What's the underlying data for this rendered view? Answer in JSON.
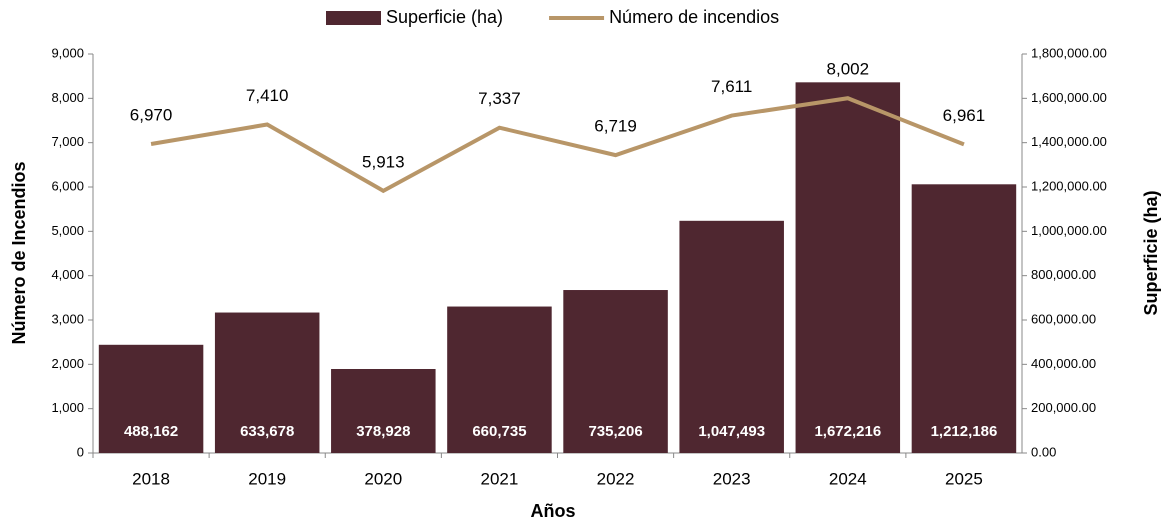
{
  "chart_data": {
    "type": "bar",
    "x_label": "Años",
    "y_label": "Número de Incendios",
    "y2_label": "Superficie (ha)",
    "categories": [
      "2018",
      "2019",
      "2020",
      "2021",
      "2022",
      "2023",
      "2024",
      "2025"
    ],
    "series": [
      {
        "name": "Superficie (ha)",
        "type": "bar",
        "axis": "y2",
        "color": "#4f2730",
        "values": [
          488162,
          633678,
          378928,
          660735,
          735206,
          1047493,
          1672216,
          1212186
        ],
        "value_labels": [
          "488,162",
          "633,678",
          "378,928",
          "660,735",
          "735,206",
          "1,047,493",
          "1,672,216",
          "1,212,186"
        ]
      },
      {
        "name": "Número de incendios",
        "type": "line",
        "axis": "y",
        "color": "#b89668",
        "values": [
          6970,
          7410,
          5913,
          7337,
          6719,
          7611,
          8002,
          6961
        ],
        "value_labels": [
          "6,970",
          "7,410",
          "5,913",
          "7,337",
          "6,719",
          "7,611",
          "8,002",
          "6,961"
        ]
      }
    ],
    "ylim": [
      0,
      9000
    ],
    "yticks": [
      0,
      {
        "value": 1000,
        "label": "1,000"
      },
      {
        "value": 2000,
        "label": "2,000"
      },
      {
        "value": 3000,
        "label": "3,000"
      },
      {
        "value": 4000,
        "label": "4,000"
      },
      {
        "value": 5000,
        "label": "5,000"
      },
      {
        "value": 6000,
        "label": "6,000"
      },
      {
        "value": 7000,
        "label": "7,000"
      },
      {
        "value": 8000,
        "label": "8,000"
      },
      {
        "value": 9000,
        "label": "9,000"
      }
    ],
    "y2lim": [
      0,
      1800000
    ],
    "y2ticks": [
      {
        "value": 0,
        "label": "0.00"
      },
      {
        "value": 200000,
        "label": "200,000.00"
      },
      {
        "value": 400000,
        "label": "400,000.00"
      },
      {
        "value": 600000,
        "label": "600,000.00"
      },
      {
        "value": 800000,
        "label": "800,000.00"
      },
      {
        "value": 1000000,
        "label": "1,000,000.00"
      },
      {
        "value": 1200000,
        "label": "1,200,000.00"
      },
      {
        "value": 1400000,
        "label": "1,400,000.00"
      },
      {
        "value": 1600000,
        "label": "1,600,000.00"
      },
      {
        "value": 1800000,
        "label": "1,800,000.00"
      }
    ],
    "legend": "top"
  }
}
